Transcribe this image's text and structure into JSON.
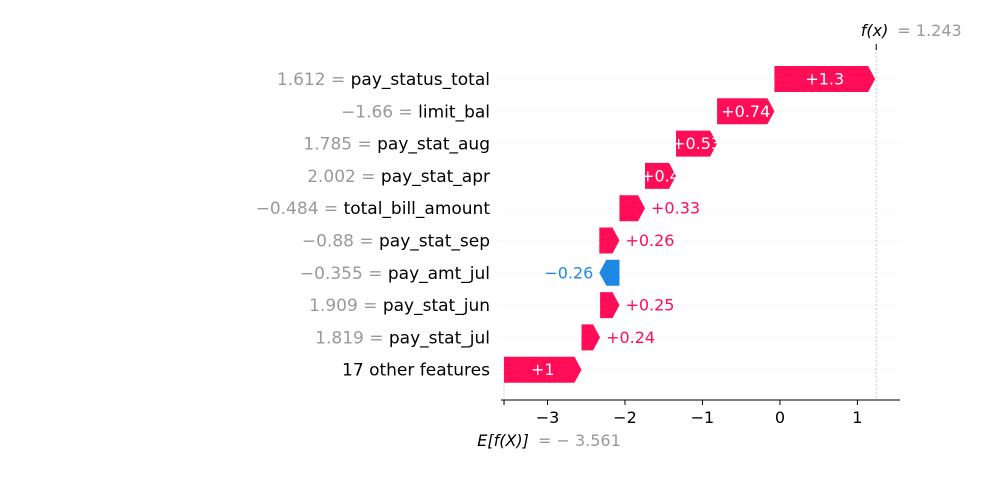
{
  "chart_data": {
    "type": "waterfall",
    "title": "",
    "xlabel": "",
    "ylabel": "",
    "xlim": [
      -3.6,
      1.55
    ],
    "x_ticks": [
      -3,
      -2,
      -1,
      0,
      1
    ],
    "x_tick_labels": [
      "−3",
      "−2",
      "−1",
      "0",
      "1"
    ],
    "base_value": -3.561,
    "output_value": 1.243,
    "base_label_name": "E[f(X)]",
    "base_label_value": "= − 3.561",
    "output_label_name": "f(x)",
    "output_label_value": "= 1.243",
    "grid": true,
    "colors": {
      "positive": "#ff0d57",
      "negative": "#1e88e5",
      "value_text": "#999999"
    },
    "rows": [
      {
        "value_text": "1.612 = ",
        "feature": "pay_status_total",
        "contribution": 1.3,
        "label": "+1.3",
        "label_inside": true
      },
      {
        "value_text": "−1.66 = ",
        "feature": "limit_bal",
        "contribution": 0.74,
        "label": "+0.74",
        "label_inside": true
      },
      {
        "value_text": "1.785 = ",
        "feature": "pay_stat_aug",
        "contribution": 0.53,
        "label": "+0.53",
        "label_inside": true
      },
      {
        "value_text": "2.002 = ",
        "feature": "pay_stat_apr",
        "contribution": 0.4,
        "label": "+0.4",
        "label_inside": true
      },
      {
        "value_text": "−0.484 = ",
        "feature": "total_bill_amount",
        "contribution": 0.33,
        "label": "+0.33",
        "label_inside": false
      },
      {
        "value_text": "−0.88 = ",
        "feature": "pay_stat_sep",
        "contribution": 0.26,
        "label": "+0.26",
        "label_inside": false
      },
      {
        "value_text": "−0.355 = ",
        "feature": "pay_amt_jul",
        "contribution": -0.26,
        "label": "−0.26",
        "label_inside": false
      },
      {
        "value_text": "1.909 = ",
        "feature": "pay_stat_jun",
        "contribution": 0.25,
        "label": "+0.25",
        "label_inside": false
      },
      {
        "value_text": "1.819 = ",
        "feature": "pay_stat_jul",
        "contribution": 0.24,
        "label": "+0.24",
        "label_inside": false
      },
      {
        "value_text": "",
        "feature": "17 other features",
        "contribution": 1.0,
        "label": "+1",
        "label_inside": true
      }
    ]
  }
}
